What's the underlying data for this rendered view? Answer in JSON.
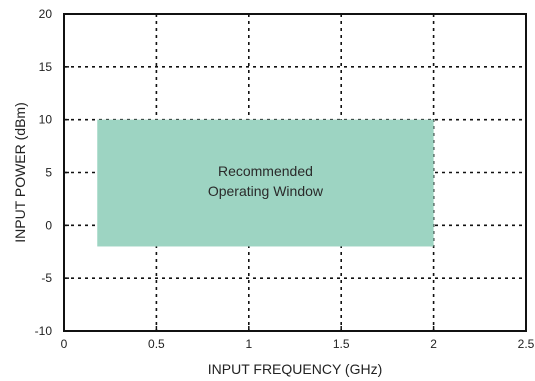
{
  "chart_data": {
    "type": "area",
    "xlabel": "INPUT FREQUENCY (GHz)",
    "ylabel": "INPUT POWER (dBm)",
    "xlim": [
      0,
      2.5
    ],
    "ylim": [
      -10,
      20
    ],
    "xticks": [
      0,
      0.5,
      1,
      1.5,
      2,
      2.5
    ],
    "xtick_labels": [
      "0",
      "0.5",
      "1",
      "1.5",
      "2",
      "2.5"
    ],
    "yticks": [
      -10,
      -5,
      0,
      5,
      10,
      15,
      20
    ],
    "ytick_labels": [
      "-10",
      "-5",
      "0",
      "5",
      "10",
      "15",
      "20"
    ],
    "grid": true,
    "grid_style": "dotted",
    "region": {
      "x": [
        0.18,
        2.0
      ],
      "y": [
        -2,
        10
      ],
      "color": "#9dd4c2",
      "label_lines": [
        "Recommended",
        "Operating Window"
      ]
    }
  }
}
